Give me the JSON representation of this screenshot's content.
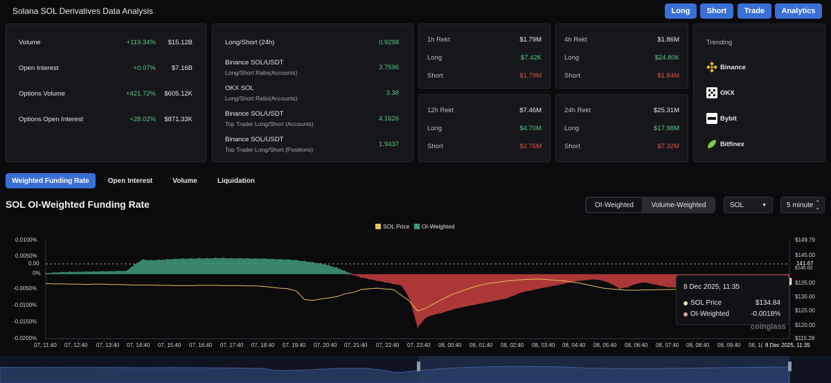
{
  "header": {
    "title": "Solana SOL Derivatives Data Analysis",
    "buttons": [
      "Long",
      "Short",
      "Trade",
      "Analytics"
    ]
  },
  "overview": [
    {
      "label": "Volume",
      "change": "+119.34%",
      "value": "$15.12B"
    },
    {
      "label": "Open Interest",
      "change": "+0.07%",
      "value": "$7.16B"
    },
    {
      "label": "Options Volume",
      "change": "+421.72%",
      "value": "$605.12K"
    },
    {
      "label": "Options Open Interest",
      "change": "+28.02%",
      "value": "$871.33K"
    }
  ],
  "ratios": [
    {
      "label": "Long/Short (24h)",
      "sub": "",
      "value": "0.9298"
    },
    {
      "label": "Binance SOL/USDT",
      "sub": "Long/Short Ratio(Accounts)",
      "value": "3.7596"
    },
    {
      "label": "OKX SOL",
      "sub": "Long/Short Ratio(Accounts)",
      "value": "3.38"
    },
    {
      "label": "Binance SOL/USDT",
      "sub": "Top Trader Long/Short (Accounts)",
      "value": "4.1626"
    },
    {
      "label": "Binance SOL/USDT",
      "sub": "Top Trader Long/Short (Positions)",
      "value": "1.9437"
    }
  ],
  "rekt": [
    {
      "title": "1h Rekt",
      "total": "$1.79M",
      "long": "$7.42K",
      "short": "$1.79M"
    },
    {
      "title": "4h Rekt",
      "total": "$1.86M",
      "long": "$24.80K",
      "short": "$1.84M"
    },
    {
      "title": "12h Rekt",
      "total": "$7.46M",
      "long": "$4.70M",
      "short": "$2.76M"
    },
    {
      "title": "24h Rekt",
      "total": "$25.31M",
      "long": "$17.98M",
      "short": "$7.32M"
    }
  ],
  "rekt_labels": {
    "long": "Long",
    "short": "Short"
  },
  "trending": {
    "title": "Trending",
    "items": [
      {
        "name": "Binance",
        "icon": "binance-icon"
      },
      {
        "name": "OKX",
        "icon": "okx-icon"
      },
      {
        "name": "Bybit",
        "icon": "bybit-icon"
      },
      {
        "name": "Bitfinex",
        "icon": "bitfinex-icon"
      }
    ]
  },
  "tabs": [
    "Weighted Funding Rate",
    "Open Interest",
    "Volume",
    "Liquidation"
  ],
  "active_tab": "Weighted Funding Rate",
  "chart_header": {
    "title": "SOL OI-Weighted Funding Rate",
    "segments": [
      "OI-Weighted",
      "Volume-Weighted"
    ],
    "active_segment": "OI-Weighted",
    "coin_select": "SOL",
    "interval_select": "5 minute"
  },
  "tooltip": {
    "date": "8 Dec 2025, 11:35",
    "rows": [
      {
        "label": "SOL Price",
        "value": "$134.84"
      },
      {
        "label": "OI-Weighted",
        "value": "-0.0018%"
      }
    ]
  },
  "watermark": "coinglass",
  "colors": {
    "accent": "#3a6fd6",
    "positive": "#5fc58a",
    "negative": "#e15050",
    "price_line": "#e6c25a",
    "funding_pos": "#3f9a78",
    "funding_neg": "#b53a3a"
  },
  "chart_data": {
    "type": "area",
    "legend": [
      "SOL Price",
      "OI-Weighted"
    ],
    "y_left_ticks": [
      "0.0100%",
      "0.0050%",
      "0.00",
      "0%",
      "-0.0050%",
      "-0.0100%",
      "-0.0150%",
      "-0.0200%"
    ],
    "y_right_ticks": [
      "$149.79",
      "$145.00",
      "141.67",
      "$140.00",
      "$135.00",
      "$130.00",
      "$125.00",
      "$120.00",
      "$115.28"
    ],
    "x_ticks": [
      "07, 11:40",
      "07, 12:40",
      "07, 13:40",
      "07, 14:40",
      "07, 15:40",
      "07, 16:40",
      "07, 17:40",
      "07, 18:40",
      "07, 19:40",
      "07, 20:40",
      "07, 21:40",
      "07, 22:40",
      "07, 23:40",
      "08, 00:40",
      "08, 01:40",
      "08, 02:40",
      "08, 03:40",
      "08, 04:40",
      "08, 05:40",
      "08, 06:40",
      "08, 07:40",
      "08, 08:40",
      "08, 09:40",
      "08, 1(",
      "8 Dec 2025, 11:35"
    ],
    "y_left_range": [
      -0.02,
      0.0105
    ],
    "y_right_range": [
      115.28,
      149.79
    ],
    "series": [
      {
        "name": "OI-Weighted",
        "unit": "%",
        "values": [
          0.0003,
          0.0005,
          0.0006,
          0.0007,
          0.0007,
          0.0008,
          0.0008,
          0.0009,
          0.0009,
          0.001,
          0.001,
          0.003,
          0.0045,
          0.0043,
          0.0044,
          0.0046,
          0.0047,
          0.0048,
          0.0048,
          0.0049,
          0.0049,
          0.005,
          0.005,
          0.0049,
          0.0049,
          0.0049,
          0.0048,
          0.0048,
          0.0047,
          0.0046,
          0.0045,
          0.0043,
          0.004,
          0.0037,
          0.0033,
          0.0027,
          0.002,
          0.001,
          -0.0002,
          -0.001,
          -0.0015,
          -0.002,
          -0.0025,
          -0.003,
          -0.0035,
          -0.0075,
          -0.0165,
          -0.0135,
          -0.0125,
          -0.012,
          -0.0112,
          -0.0105,
          -0.01,
          -0.0095,
          -0.009,
          -0.0085,
          -0.008,
          -0.0075,
          -0.0065,
          -0.0055,
          -0.005,
          -0.0045,
          -0.004,
          -0.0035,
          -0.003,
          -0.0025,
          -0.002,
          -0.0018,
          -0.0016,
          -0.002,
          -0.003,
          -0.0045,
          -0.004,
          -0.003,
          -0.0025,
          -0.003,
          -0.0035,
          -0.004,
          -0.0042,
          -0.004,
          -0.0038,
          -0.0042,
          -0.0045,
          -0.0043,
          -0.004,
          -0.0038,
          -0.0032,
          -0.003,
          -0.0035,
          -0.003,
          -0.0025,
          -0.002,
          -0.0018
        ]
      },
      {
        "name": "SOL Price",
        "unit": "$",
        "values": [
          134.6,
          134.5,
          134.5,
          134.4,
          134.4,
          134.3,
          134.4,
          134.4,
          134.3,
          134.3,
          134.2,
          134.1,
          134.1,
          134.1,
          134.0,
          134.0,
          133.9,
          133.9,
          133.9,
          134.0,
          134.0,
          134.0,
          133.9,
          133.9,
          133.9,
          133.8,
          133.8,
          133.6,
          133.3,
          133.0,
          132.8,
          132.0,
          129.0,
          128.7,
          129.2,
          129.6,
          130.0,
          131.0,
          131.5,
          132.5,
          132.8,
          133.0,
          132.7,
          132.5,
          130.5,
          128.5,
          125.0,
          126.0,
          127.5,
          129.0,
          130.5,
          131.5,
          132.5,
          133.5,
          134.2,
          134.8,
          135.1,
          135.5,
          135.8,
          136.0,
          136.1,
          136.2,
          136.0,
          135.8,
          135.6,
          135.2,
          134.8,
          134.2,
          133.6,
          133.0,
          132.7,
          132.5,
          132.3,
          132.3,
          132.4,
          132.4,
          132.5,
          132.5,
          132.6,
          132.8,
          133.0,
          133.3,
          133.5,
          133.6,
          133.9,
          134.1,
          134.3,
          134.5,
          134.6,
          134.8,
          134.8,
          134.84,
          134.84
        ]
      }
    ]
  }
}
